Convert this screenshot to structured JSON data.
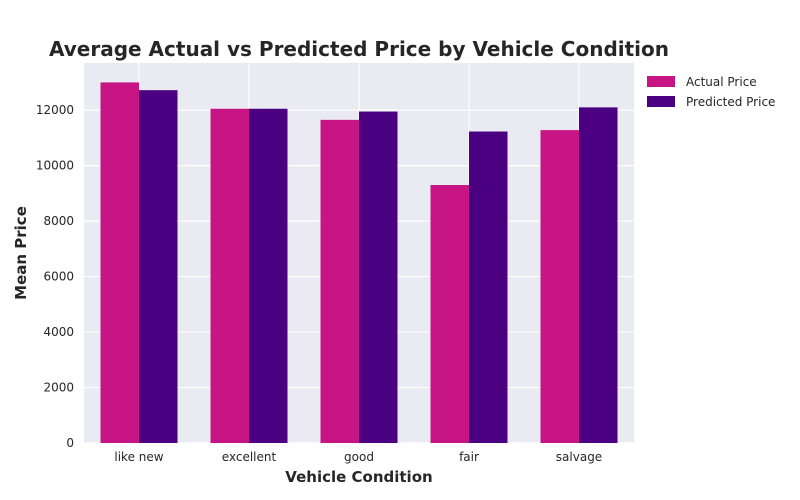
{
  "chart_data": {
    "type": "bar",
    "title": "Average Actual vs Predicted Price by Vehicle Condition",
    "xlabel": "Vehicle Condition",
    "ylabel": "Mean Price",
    "categories": [
      "like new",
      "excellent",
      "good",
      "fair",
      "salvage"
    ],
    "series": [
      {
        "name": "Actual Price",
        "color": "#c71585",
        "values": [
          13000,
          12050,
          11650,
          9300,
          11280
        ]
      },
      {
        "name": "Predicted Price",
        "color": "#4b0082",
        "values": [
          12720,
          12050,
          11950,
          11230,
          12100
        ]
      }
    ],
    "ylim": [
      0,
      13700
    ],
    "yticks": [
      0,
      2000,
      4000,
      6000,
      8000,
      10000,
      12000
    ],
    "grid": true,
    "legend_position": "top-right-outside",
    "background_color": "#eaeaf2",
    "grid_color": "#ffffff"
  }
}
